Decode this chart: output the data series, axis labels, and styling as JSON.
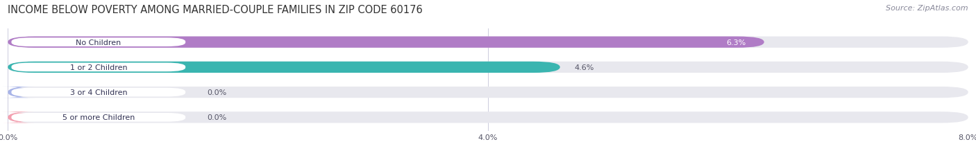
{
  "title": "INCOME BELOW POVERTY AMONG MARRIED-COUPLE FAMILIES IN ZIP CODE 60176",
  "source": "Source: ZipAtlas.com",
  "categories": [
    "No Children",
    "1 or 2 Children",
    "3 or 4 Children",
    "5 or more Children"
  ],
  "values": [
    6.3,
    4.6,
    0.0,
    0.0
  ],
  "bar_colors": [
    "#b07cc6",
    "#3ab5b0",
    "#a8b4e8",
    "#f4a0b0"
  ],
  "bar_bg_color": "#e8e8ee",
  "xlim": [
    0,
    8.0
  ],
  "xtick_labels": [
    "0.0%",
    "4.0%",
    "8.0%"
  ],
  "title_fontsize": 10.5,
  "source_fontsize": 8,
  "bar_label_fontsize": 8,
  "value_fontsize": 8,
  "background_color": "#ffffff",
  "grid_color": "#ccccdd",
  "bar_height": 0.45,
  "value_colors": [
    "#ffffff",
    "#555566",
    "#555566",
    "#555566"
  ]
}
